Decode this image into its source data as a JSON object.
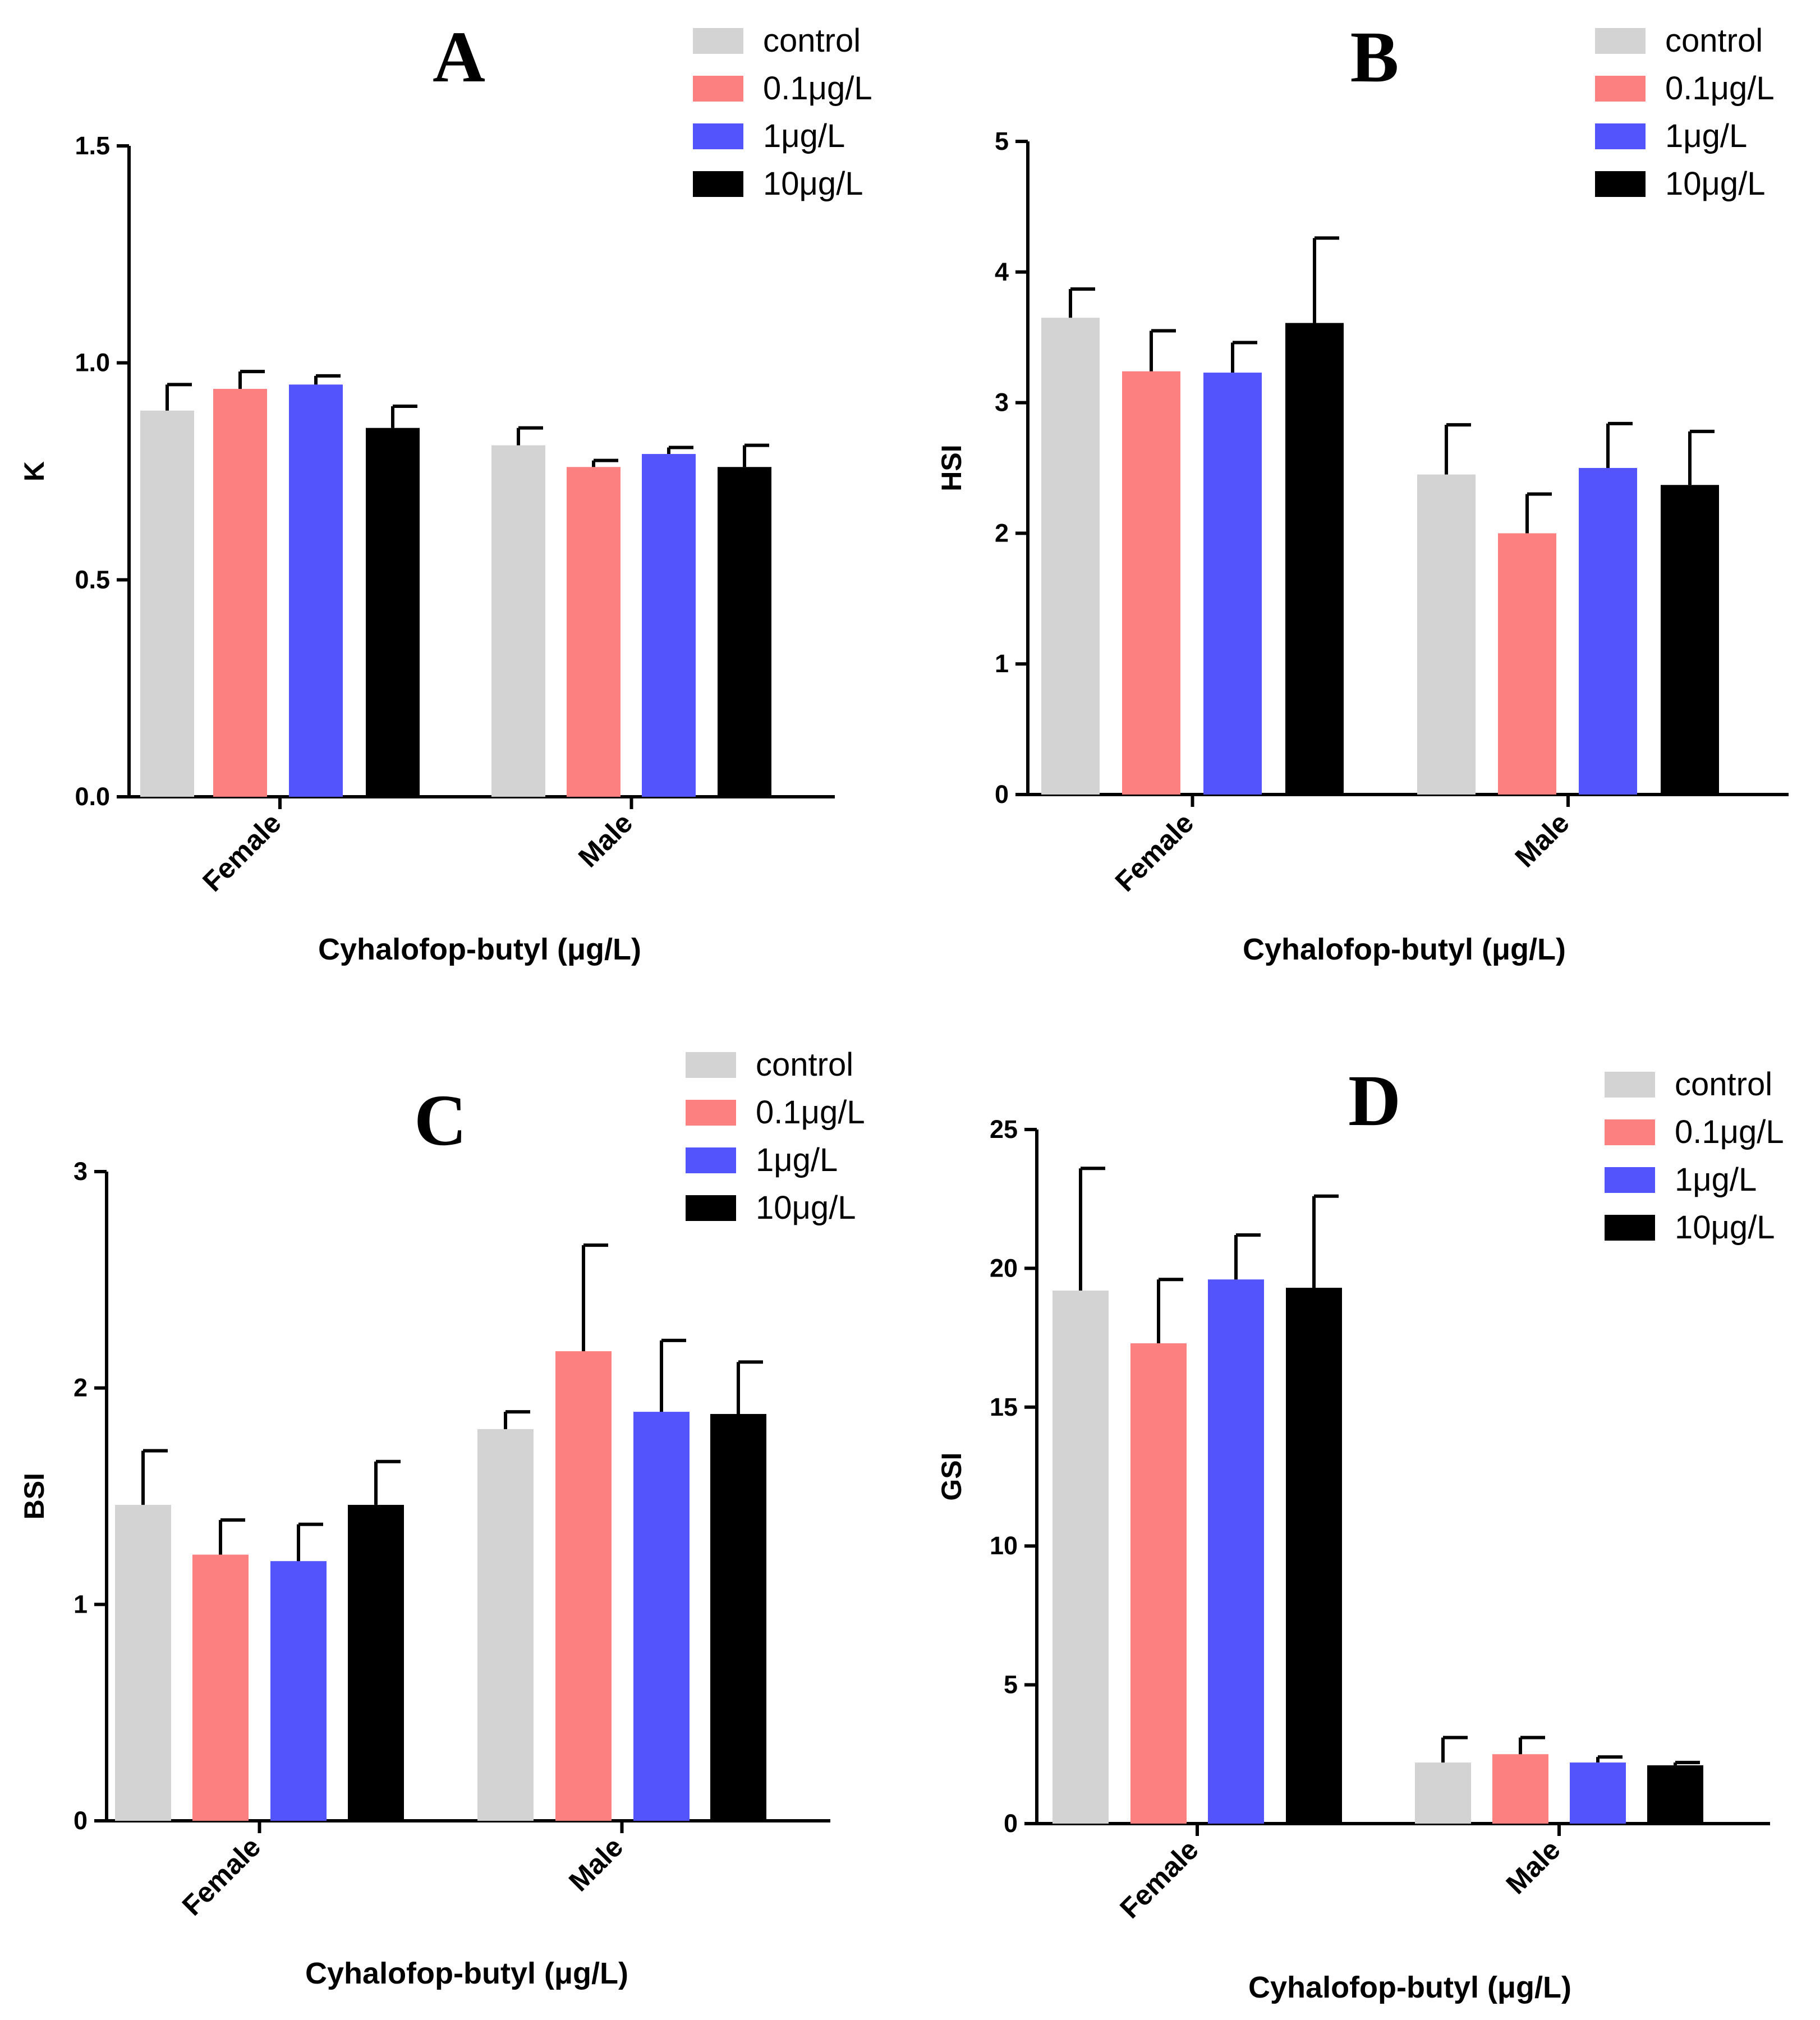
{
  "chart_data": [
    {
      "type": "bar",
      "panel_label": "A",
      "categories": [
        "Female",
        "Male"
      ],
      "series": [
        {
          "name": "control",
          "values": [
            0.89,
            0.81
          ],
          "errors": [
            0.06,
            0.04
          ]
        },
        {
          "name": "0.1μg/L",
          "values": [
            0.94,
            0.76
          ],
          "errors": [
            0.04,
            0.015
          ]
        },
        {
          "name": "1μg/L",
          "values": [
            0.95,
            0.79
          ],
          "errors": [
            0.02,
            0.015
          ]
        },
        {
          "name": "10μg/L",
          "values": [
            0.85,
            0.76
          ],
          "errors": [
            0.05,
            0.05
          ]
        }
      ],
      "ylabel": "K",
      "xlabel": "Cyhalofop-butyl (μg/L)",
      "ylim": [
        0,
        1.5
      ],
      "yticks": [
        "0.0",
        "0.5",
        "1.0",
        "1.5"
      ],
      "legend_position": "top-right",
      "grid": false
    },
    {
      "type": "bar",
      "panel_label": "B",
      "categories": [
        "Female",
        "Male"
      ],
      "series": [
        {
          "name": "control",
          "values": [
            3.65,
            2.45
          ],
          "errors": [
            0.22,
            0.38
          ]
        },
        {
          "name": "0.1μg/L",
          "values": [
            3.24,
            2.0
          ],
          "errors": [
            0.31,
            0.3
          ]
        },
        {
          "name": "1μg/L",
          "values": [
            3.23,
            2.5
          ],
          "errors": [
            0.23,
            0.34
          ]
        },
        {
          "name": "10μg/L",
          "values": [
            3.61,
            2.37
          ],
          "errors": [
            0.65,
            0.41
          ]
        }
      ],
      "ylabel": "HSI",
      "xlabel": "Cyhalofop-butyl (μg/L)",
      "ylim": [
        0,
        5
      ],
      "yticks": [
        "0",
        "1",
        "2",
        "3",
        "4",
        "5"
      ],
      "legend_position": "top-right",
      "grid": false
    },
    {
      "type": "bar",
      "panel_label": "C",
      "categories": [
        "Female",
        "Male"
      ],
      "series": [
        {
          "name": "control",
          "values": [
            1.46,
            1.81
          ],
          "errors": [
            0.25,
            0.08
          ]
        },
        {
          "name": "0.1μg/L",
          "values": [
            1.23,
            2.17
          ],
          "errors": [
            0.16,
            0.49
          ]
        },
        {
          "name": "1μg/L",
          "values": [
            1.2,
            1.89
          ],
          "errors": [
            0.17,
            0.33
          ]
        },
        {
          "name": "10μg/L",
          "values": [
            1.46,
            1.88
          ],
          "errors": [
            0.2,
            0.24
          ]
        }
      ],
      "ylabel": "BSI",
      "xlabel": "Cyhalofop-butyl (μg/L)",
      "ylim": [
        0,
        3
      ],
      "yticks": [
        "0",
        "1",
        "2",
        "3"
      ],
      "legend_position": "top-right",
      "grid": false
    },
    {
      "type": "bar",
      "panel_label": "D",
      "categories": [
        "Female",
        "Male"
      ],
      "series": [
        {
          "name": "control",
          "values": [
            19.2,
            2.2
          ],
          "errors": [
            4.4,
            0.9
          ]
        },
        {
          "name": "0.1μg/L",
          "values": [
            17.3,
            2.5
          ],
          "errors": [
            2.3,
            0.6
          ]
        },
        {
          "name": "1μg/L",
          "values": [
            19.6,
            2.2
          ],
          "errors": [
            1.6,
            0.2
          ]
        },
        {
          "name": "10μg/L",
          "values": [
            19.3,
            2.1
          ],
          "errors": [
            3.3,
            0.1
          ]
        }
      ],
      "ylabel": "GSI",
      "xlabel": "Cyhalofop-butyl (μg/L)",
      "ylim": [
        0,
        25
      ],
      "yticks": [
        "0",
        "5",
        "10",
        "15",
        "20",
        "25"
      ],
      "legend_position": "top-right",
      "grid": false
    }
  ],
  "colors": {
    "control": "#d3d3d3",
    "0.1μg/L": "#fc8080",
    "1μg/L": "#5454fc",
    "10μg/L": "#000000"
  }
}
